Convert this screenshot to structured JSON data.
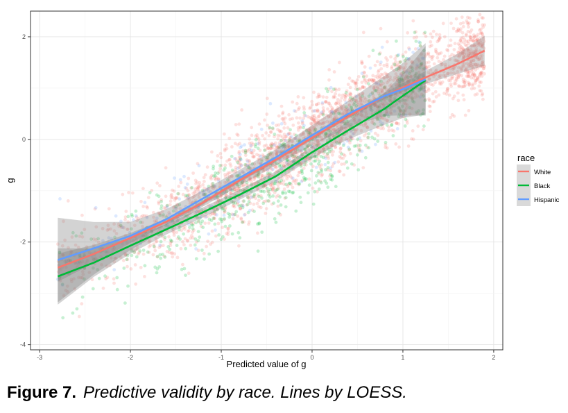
{
  "caption": {
    "label": "Figure 7.",
    "text": "Predictive validity by race. Lines by LOESS."
  },
  "chart_data": {
    "type": "scatter",
    "title": "",
    "xlabel": "Predicted value of g",
    "ylabel": "g",
    "xlim": [
      -3.1,
      2.1
    ],
    "ylim": [
      -4.1,
      2.5
    ],
    "x_ticks": [
      -3,
      -2,
      -1,
      0,
      1,
      2
    ],
    "y_ticks": [
      -4,
      -2,
      0,
      2
    ],
    "grid": true,
    "legend_title": "race",
    "legend_position": "right",
    "series": [
      {
        "name": "White",
        "color": "#F8766D",
        "n_points": 2400,
        "x_range": [
          -2.8,
          1.9
        ],
        "loess": {
          "x": [
            -2.8,
            -2.4,
            -2.0,
            -1.6,
            -1.2,
            -0.8,
            -0.4,
            0.0,
            0.4,
            0.8,
            1.2,
            1.6,
            1.9
          ],
          "y": [
            -2.5,
            -2.23,
            -1.92,
            -1.6,
            -1.23,
            -0.8,
            -0.4,
            0.03,
            0.45,
            0.85,
            1.17,
            1.47,
            1.73
          ],
          "se": [
            0.14,
            0.09,
            0.05,
            0.03,
            0.02,
            0.02,
            0.02,
            0.02,
            0.02,
            0.03,
            0.06,
            0.1,
            0.15
          ]
        }
      },
      {
        "name": "Black",
        "color": "#00BA38",
        "n_points": 650,
        "x_range": [
          -2.8,
          1.25
        ],
        "loess": {
          "x": [
            -2.8,
            -2.4,
            -2.0,
            -1.6,
            -1.2,
            -0.8,
            -0.4,
            0.0,
            0.4,
            0.8,
            1.0,
            1.25
          ],
          "y": [
            -2.67,
            -2.4,
            -2.07,
            -1.75,
            -1.42,
            -1.08,
            -0.72,
            -0.25,
            0.18,
            0.6,
            0.85,
            1.15
          ],
          "se": [
            0.28,
            0.14,
            0.08,
            0.05,
            0.05,
            0.05,
            0.05,
            0.06,
            0.09,
            0.16,
            0.22,
            0.34
          ]
        }
      },
      {
        "name": "Hispanic",
        "color": "#619CFF",
        "n_points": 220,
        "x_range": [
          -2.8,
          1.25
        ],
        "loess": {
          "x": [
            -2.8,
            -2.4,
            -2.0,
            -1.6,
            -1.2,
            -0.8,
            -0.4,
            0.0,
            0.4,
            0.8,
            1.0,
            1.25
          ],
          "y": [
            -2.35,
            -2.12,
            -1.88,
            -1.55,
            -1.15,
            -0.75,
            -0.35,
            0.08,
            0.5,
            0.85,
            0.98,
            1.17
          ],
          "se": [
            0.42,
            0.26,
            0.14,
            0.1,
            0.08,
            0.08,
            0.08,
            0.1,
            0.13,
            0.2,
            0.26,
            0.36
          ]
        }
      }
    ]
  }
}
